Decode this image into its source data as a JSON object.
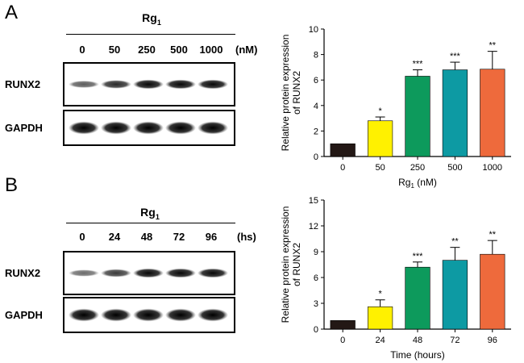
{
  "panels": [
    {
      "letter": "A",
      "blot": {
        "title_main": "Rg",
        "title_sub": "1",
        "lanes": [
          "0",
          "50",
          "250",
          "500",
          "1000"
        ],
        "unit": "(nM)",
        "rows": [
          {
            "label": "RUNX2",
            "intensities": [
              0.45,
              0.75,
              0.95,
              0.95,
              0.95
            ]
          },
          {
            "label": "GAPDH",
            "intensities": [
              1.0,
              1.0,
              1.0,
              1.0,
              1.0
            ]
          }
        ]
      },
      "chart": {
        "ylabel_line1": "Relative  protein expression",
        "ylabel_line2": "of RUNX2",
        "xlabel_main": "Rg",
        "xlabel_sub": "1",
        "xlabel_unit": " (nM)"
      }
    },
    {
      "letter": "B",
      "blot": {
        "title_main": "Rg",
        "title_sub": "1",
        "lanes": [
          "0",
          "24",
          "48",
          "72",
          "96"
        ],
        "unit": "(hs)",
        "rows": [
          {
            "label": "RUNX2",
            "intensities": [
              0.35,
              0.65,
              0.95,
              0.95,
              0.95
            ]
          },
          {
            "label": "GAPDH",
            "intensities": [
              1.0,
              1.0,
              1.0,
              1.0,
              1.0
            ]
          }
        ]
      },
      "chart": {
        "ylabel_line1": "Relative  protein expression",
        "ylabel_line2": "of RUNX2",
        "xlabel_main": "Time (hours)",
        "xlabel_sub": "",
        "xlabel_unit": ""
      }
    }
  ],
  "chart_data": [
    {
      "type": "bar",
      "categories": [
        "0",
        "50",
        "250",
        "500",
        "1000"
      ],
      "values": [
        1.0,
        2.8,
        6.3,
        6.8,
        6.85
      ],
      "errors": [
        0,
        0.3,
        0.5,
        0.6,
        1.4
      ],
      "significance": [
        "",
        "*",
        "***",
        "***",
        "**"
      ],
      "colors": [
        "#231815",
        "#fff100",
        "#0d9a5c",
        "#0d9aa3",
        "#ee6a3c"
      ],
      "ylim": [
        0,
        10
      ],
      "yticks": [
        "0",
        "2",
        "4",
        "6",
        "8",
        "10"
      ],
      "xlabel": "Rg1 (nM)",
      "ylabel": "Relative  protein expression of RUNX2"
    },
    {
      "type": "bar",
      "categories": [
        "0",
        "24",
        "48",
        "72",
        "96"
      ],
      "values": [
        1.0,
        2.6,
        7.2,
        8.0,
        8.7
      ],
      "errors": [
        0,
        0.8,
        0.6,
        1.5,
        1.6
      ],
      "significance": [
        "",
        "*",
        "***",
        "**",
        "**"
      ],
      "colors": [
        "#231815",
        "#fff100",
        "#0d9a5c",
        "#0d9aa3",
        "#ee6a3c"
      ],
      "ylim": [
        0,
        15
      ],
      "yticks": [
        "0",
        "3",
        "6",
        "9",
        "12",
        "15"
      ],
      "xlabel": "Time (hours)",
      "ylabel": "Relative  protein expression of RUNX2"
    }
  ]
}
